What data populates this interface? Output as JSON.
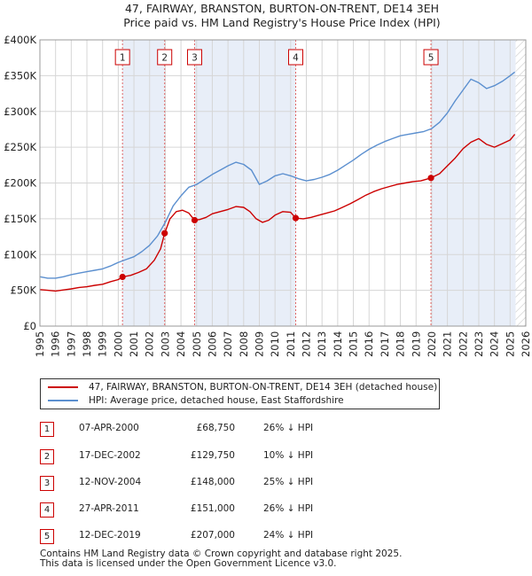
{
  "chart_data": {
    "type": "line",
    "title": "47, FAIRWAY, BRANSTON, BURTON-ON-TRENT, DE14 3EH",
    "subtitle": "Price paid vs. HM Land Registry's House Price Index (HPI)",
    "xlim": [
      1995,
      2026
    ],
    "ylim": [
      0,
      400000
    ],
    "x_ticks": [
      "1995",
      "1996",
      "1997",
      "1998",
      "1999",
      "2000",
      "2001",
      "2002",
      "2003",
      "2004",
      "2005",
      "2006",
      "2007",
      "2008",
      "2009",
      "2010",
      "2011",
      "2012",
      "2013",
      "2014",
      "2015",
      "2016",
      "2017",
      "2018",
      "2019",
      "2020",
      "2021",
      "2022",
      "2023",
      "2024",
      "2025",
      "2026"
    ],
    "y_ticks": [
      {
        "value": 0,
        "label": "£0"
      },
      {
        "value": 50000,
        "label": "£50K"
      },
      {
        "value": 100000,
        "label": "£100K"
      },
      {
        "value": 150000,
        "label": "£150K"
      },
      {
        "value": 200000,
        "label": "£200K"
      },
      {
        "value": 250000,
        "label": "£250K"
      },
      {
        "value": 300000,
        "label": "£300K"
      },
      {
        "value": 350000,
        "label": "£350K"
      },
      {
        "value": 400000,
        "label": "£400K"
      }
    ],
    "series": [
      {
        "name": "47, FAIRWAY, BRANSTON, BURTON-ON-TRENT, DE14 3EH (detached house)",
        "color": "#cc0000",
        "points": [
          [
            1995.0,
            51000
          ],
          [
            1995.5,
            50000
          ],
          [
            1996.0,
            49000
          ],
          [
            1996.5,
            50500
          ],
          [
            1997.0,
            52000
          ],
          [
            1997.5,
            54000
          ],
          [
            1998.0,
            55000
          ],
          [
            1998.5,
            57000
          ],
          [
            1999.0,
            58500
          ],
          [
            1999.5,
            62000
          ],
          [
            2000.0,
            65000
          ],
          [
            2000.27,
            68750
          ],
          [
            2000.8,
            71000
          ],
          [
            2001.3,
            75000
          ],
          [
            2001.8,
            80000
          ],
          [
            2002.3,
            92000
          ],
          [
            2002.7,
            108000
          ],
          [
            2002.96,
            129750
          ],
          [
            2003.3,
            150000
          ],
          [
            2003.7,
            160000
          ],
          [
            2004.1,
            162000
          ],
          [
            2004.5,
            158000
          ],
          [
            2004.87,
            148000
          ],
          [
            2005.2,
            149000
          ],
          [
            2005.6,
            152000
          ],
          [
            2006.0,
            157000
          ],
          [
            2006.5,
            160000
          ],
          [
            2007.0,
            163000
          ],
          [
            2007.5,
            167000
          ],
          [
            2008.0,
            166000
          ],
          [
            2008.4,
            160000
          ],
          [
            2008.8,
            150000
          ],
          [
            2009.2,
            145000
          ],
          [
            2009.6,
            148000
          ],
          [
            2010.0,
            155000
          ],
          [
            2010.5,
            160000
          ],
          [
            2011.0,
            159000
          ],
          [
            2011.32,
            151000
          ],
          [
            2011.8,
            150000
          ],
          [
            2012.3,
            152000
          ],
          [
            2012.8,
            155000
          ],
          [
            2013.3,
            158000
          ],
          [
            2013.8,
            161000
          ],
          [
            2014.3,
            166000
          ],
          [
            2014.8,
            171000
          ],
          [
            2015.3,
            177000
          ],
          [
            2015.8,
            183000
          ],
          [
            2016.3,
            188000
          ],
          [
            2016.8,
            192000
          ],
          [
            2017.3,
            195000
          ],
          [
            2017.8,
            198000
          ],
          [
            2018.3,
            200000
          ],
          [
            2018.8,
            202000
          ],
          [
            2019.3,
            203000
          ],
          [
            2019.95,
            207000
          ],
          [
            2020.5,
            213000
          ],
          [
            2021.0,
            224000
          ],
          [
            2021.5,
            235000
          ],
          [
            2022.0,
            248000
          ],
          [
            2022.5,
            257000
          ],
          [
            2023.0,
            262000
          ],
          [
            2023.5,
            254000
          ],
          [
            2024.0,
            250000
          ],
          [
            2024.5,
            255000
          ],
          [
            2025.0,
            260000
          ],
          [
            2025.3,
            268000
          ]
        ]
      },
      {
        "name": "HPI: Average price, detached house, East Staffordshire",
        "color": "#5b8fcf",
        "points": [
          [
            1995.0,
            69000
          ],
          [
            1995.5,
            67000
          ],
          [
            1996.0,
            67000
          ],
          [
            1996.5,
            69000
          ],
          [
            1997.0,
            72000
          ],
          [
            1997.5,
            74000
          ],
          [
            1998.0,
            76000
          ],
          [
            1998.5,
            78000
          ],
          [
            1999.0,
            80000
          ],
          [
            1999.5,
            84000
          ],
          [
            2000.0,
            89000
          ],
          [
            2000.5,
            93000
          ],
          [
            2001.0,
            97000
          ],
          [
            2001.5,
            104000
          ],
          [
            2002.0,
            113000
          ],
          [
            2002.5,
            126000
          ],
          [
            2003.0,
            145000
          ],
          [
            2003.5,
            168000
          ],
          [
            2004.0,
            182000
          ],
          [
            2004.5,
            194000
          ],
          [
            2005.0,
            198000
          ],
          [
            2005.5,
            205000
          ],
          [
            2006.0,
            212000
          ],
          [
            2006.5,
            218000
          ],
          [
            2007.0,
            224000
          ],
          [
            2007.5,
            229000
          ],
          [
            2008.0,
            226000
          ],
          [
            2008.5,
            218000
          ],
          [
            2009.0,
            198000
          ],
          [
            2009.5,
            203000
          ],
          [
            2010.0,
            210000
          ],
          [
            2010.5,
            213000
          ],
          [
            2011.0,
            210000
          ],
          [
            2011.5,
            206000
          ],
          [
            2012.0,
            203000
          ],
          [
            2012.5,
            205000
          ],
          [
            2013.0,
            208000
          ],
          [
            2013.5,
            212000
          ],
          [
            2014.0,
            218000
          ],
          [
            2014.5,
            225000
          ],
          [
            2015.0,
            232000
          ],
          [
            2015.5,
            240000
          ],
          [
            2016.0,
            247000
          ],
          [
            2016.5,
            253000
          ],
          [
            2017.0,
            258000
          ],
          [
            2017.5,
            262000
          ],
          [
            2018.0,
            266000
          ],
          [
            2018.5,
            268000
          ],
          [
            2019.0,
            270000
          ],
          [
            2019.5,
            272000
          ],
          [
            2020.0,
            276000
          ],
          [
            2020.5,
            285000
          ],
          [
            2021.0,
            298000
          ],
          [
            2021.5,
            315000
          ],
          [
            2022.0,
            330000
          ],
          [
            2022.5,
            345000
          ],
          [
            2023.0,
            340000
          ],
          [
            2023.5,
            332000
          ],
          [
            2024.0,
            336000
          ],
          [
            2024.5,
            342000
          ],
          [
            2025.0,
            350000
          ],
          [
            2025.3,
            355000
          ]
        ]
      }
    ],
    "sales": [
      {
        "label": "1",
        "x": 2000.27,
        "value": 68750
      },
      {
        "label": "2",
        "x": 2002.96,
        "value": 129750
      },
      {
        "label": "3",
        "x": 2004.87,
        "value": 148000
      },
      {
        "label": "4",
        "x": 2011.32,
        "value": 151000
      },
      {
        "label": "5",
        "x": 2019.95,
        "value": 207000
      }
    ],
    "shaded_ranges": [
      [
        2000.27,
        2002.96
      ],
      [
        2004.87,
        2011.32
      ],
      [
        2019.95,
        2025.35
      ]
    ],
    "hatched_from": 2025.35
  },
  "legend": {
    "items": [
      {
        "label": "47, FAIRWAY, BRANSTON, BURTON-ON-TRENT, DE14 3EH (detached house)",
        "color": "#cc0000"
      },
      {
        "label": "HPI: Average price, detached house, East Staffordshire",
        "color": "#5b8fcf"
      }
    ]
  },
  "transactions": [
    {
      "num": "1",
      "date": "07-APR-2000",
      "price": "£68,750",
      "hpi": "26% ↓ HPI"
    },
    {
      "num": "2",
      "date": "17-DEC-2002",
      "price": "£129,750",
      "hpi": "10% ↓ HPI"
    },
    {
      "num": "3",
      "date": "12-NOV-2004",
      "price": "£148,000",
      "hpi": "25% ↓ HPI"
    },
    {
      "num": "4",
      "date": "27-APR-2011",
      "price": "£151,000",
      "hpi": "26% ↓ HPI"
    },
    {
      "num": "5",
      "date": "12-DEC-2019",
      "price": "£207,000",
      "hpi": "24% ↓ HPI"
    }
  ],
  "footer": {
    "line1": "Contains HM Land Registry data © Crown copyright and database right 2025.",
    "line2": "This data is licensed under the Open Government Licence v3.0."
  }
}
